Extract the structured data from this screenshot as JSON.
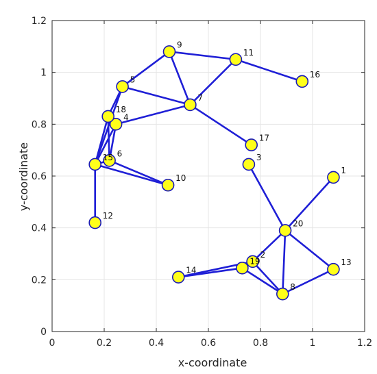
{
  "chart_data": {
    "type": "scatter",
    "graph": true,
    "xlabel": "x-coordinate",
    "ylabel": "y-coordinate",
    "xlim": [
      0,
      1.2
    ],
    "ylim": [
      0,
      1.2
    ],
    "xticks": [
      "0",
      "0.2",
      "0.4",
      "0.6",
      "0.8",
      "1",
      "1.2"
    ],
    "yticks": [
      "0",
      "0.2",
      "0.4",
      "0.6",
      "0.8",
      "1",
      "1.2"
    ],
    "grid": true,
    "nodes": [
      {
        "id": "1",
        "x": 1.08,
        "y": 0.595
      },
      {
        "id": "2",
        "x": 0.77,
        "y": 0.27
      },
      {
        "id": "3",
        "x": 0.755,
        "y": 0.645
      },
      {
        "id": "4",
        "x": 0.245,
        "y": 0.8
      },
      {
        "id": "5",
        "x": 0.27,
        "y": 0.945
      },
      {
        "id": "6",
        "x": 0.22,
        "y": 0.66
      },
      {
        "id": "7",
        "x": 0.53,
        "y": 0.875
      },
      {
        "id": "8",
        "x": 0.885,
        "y": 0.145
      },
      {
        "id": "9",
        "x": 0.45,
        "y": 1.08
      },
      {
        "id": "10",
        "x": 0.445,
        "y": 0.565
      },
      {
        "id": "11",
        "x": 0.705,
        "y": 1.05
      },
      {
        "id": "12",
        "x": 0.165,
        "y": 0.42
      },
      {
        "id": "13",
        "x": 1.08,
        "y": 0.24
      },
      {
        "id": "14",
        "x": 0.485,
        "y": 0.21
      },
      {
        "id": "15",
        "x": 0.165,
        "y": 0.645
      },
      {
        "id": "16",
        "x": 0.96,
        "y": 0.965
      },
      {
        "id": "17",
        "x": 0.765,
        "y": 0.72
      },
      {
        "id": "18",
        "x": 0.215,
        "y": 0.83
      },
      {
        "id": "19",
        "x": 0.73,
        "y": 0.245
      },
      {
        "id": "20",
        "x": 0.895,
        "y": 0.39
      }
    ],
    "edges": [
      [
        "5",
        "9"
      ],
      [
        "9",
        "7"
      ],
      [
        "9",
        "11"
      ],
      [
        "11",
        "7"
      ],
      [
        "11",
        "16"
      ],
      [
        "5",
        "7"
      ],
      [
        "7",
        "4"
      ],
      [
        "7",
        "17"
      ],
      [
        "5",
        "18"
      ],
      [
        "5",
        "15"
      ],
      [
        "18",
        "4"
      ],
      [
        "18",
        "15"
      ],
      [
        "18",
        "6"
      ],
      [
        "4",
        "15"
      ],
      [
        "4",
        "6"
      ],
      [
        "15",
        "12"
      ],
      [
        "15",
        "6"
      ],
      [
        "15",
        "10"
      ],
      [
        "6",
        "10"
      ],
      [
        "3",
        "20"
      ],
      [
        "1",
        "20"
      ],
      [
        "20",
        "2"
      ],
      [
        "20",
        "13"
      ],
      [
        "20",
        "8"
      ],
      [
        "2",
        "8"
      ],
      [
        "2",
        "19"
      ],
      [
        "8",
        "13"
      ],
      [
        "14",
        "2"
      ],
      [
        "14",
        "19"
      ],
      [
        "19",
        "8"
      ]
    ],
    "colors": {
      "edge": "#1f1fd6",
      "node_fill": "#ffff1a",
      "node_stroke": "#1a1ab8",
      "grid": "#e5e5e5",
      "axis": "#262626"
    }
  }
}
